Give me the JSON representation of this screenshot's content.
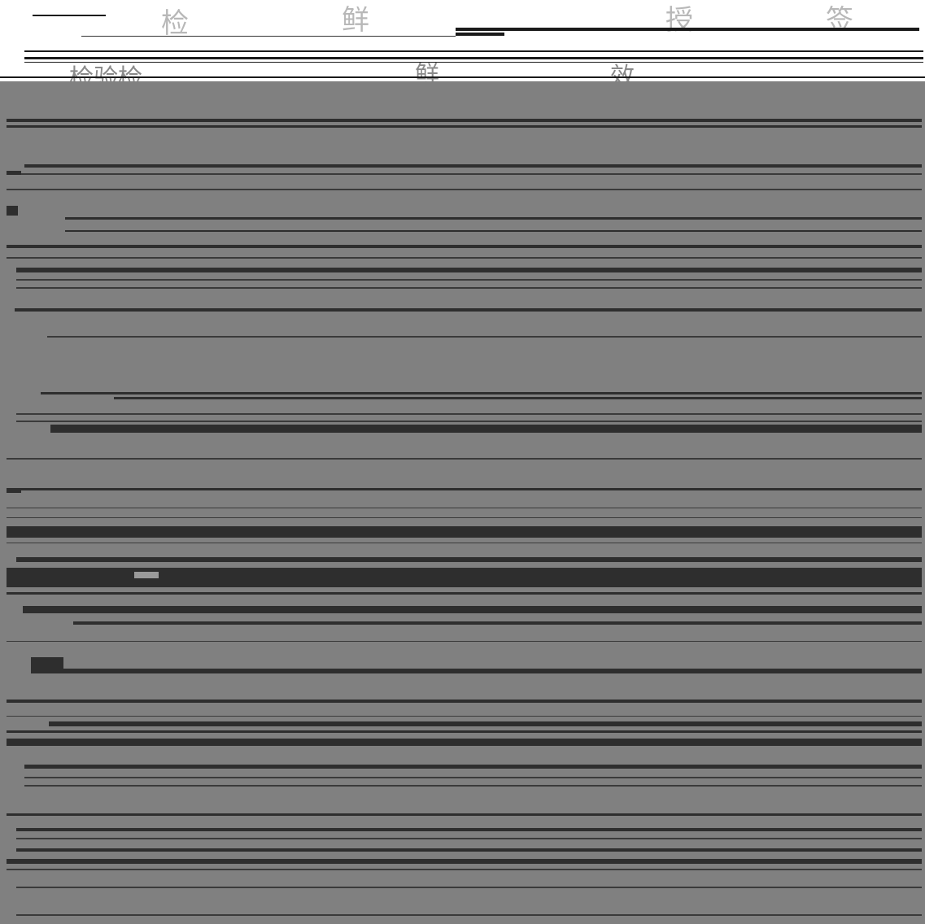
{
  "header_glyphs": {
    "g1": "检",
    "g2": "鲜",
    "g3": "授",
    "g4": "签"
  },
  "row2_glyphs": {
    "g1": "检验检",
    "g2": "鲜",
    "g3": "效"
  },
  "colors": {
    "background": "#ffffff",
    "panel_gray": "#808080",
    "line_dark": "#2e2e2e",
    "line_mid": "#3a3a3a",
    "glyph": "#b8b8b8"
  }
}
